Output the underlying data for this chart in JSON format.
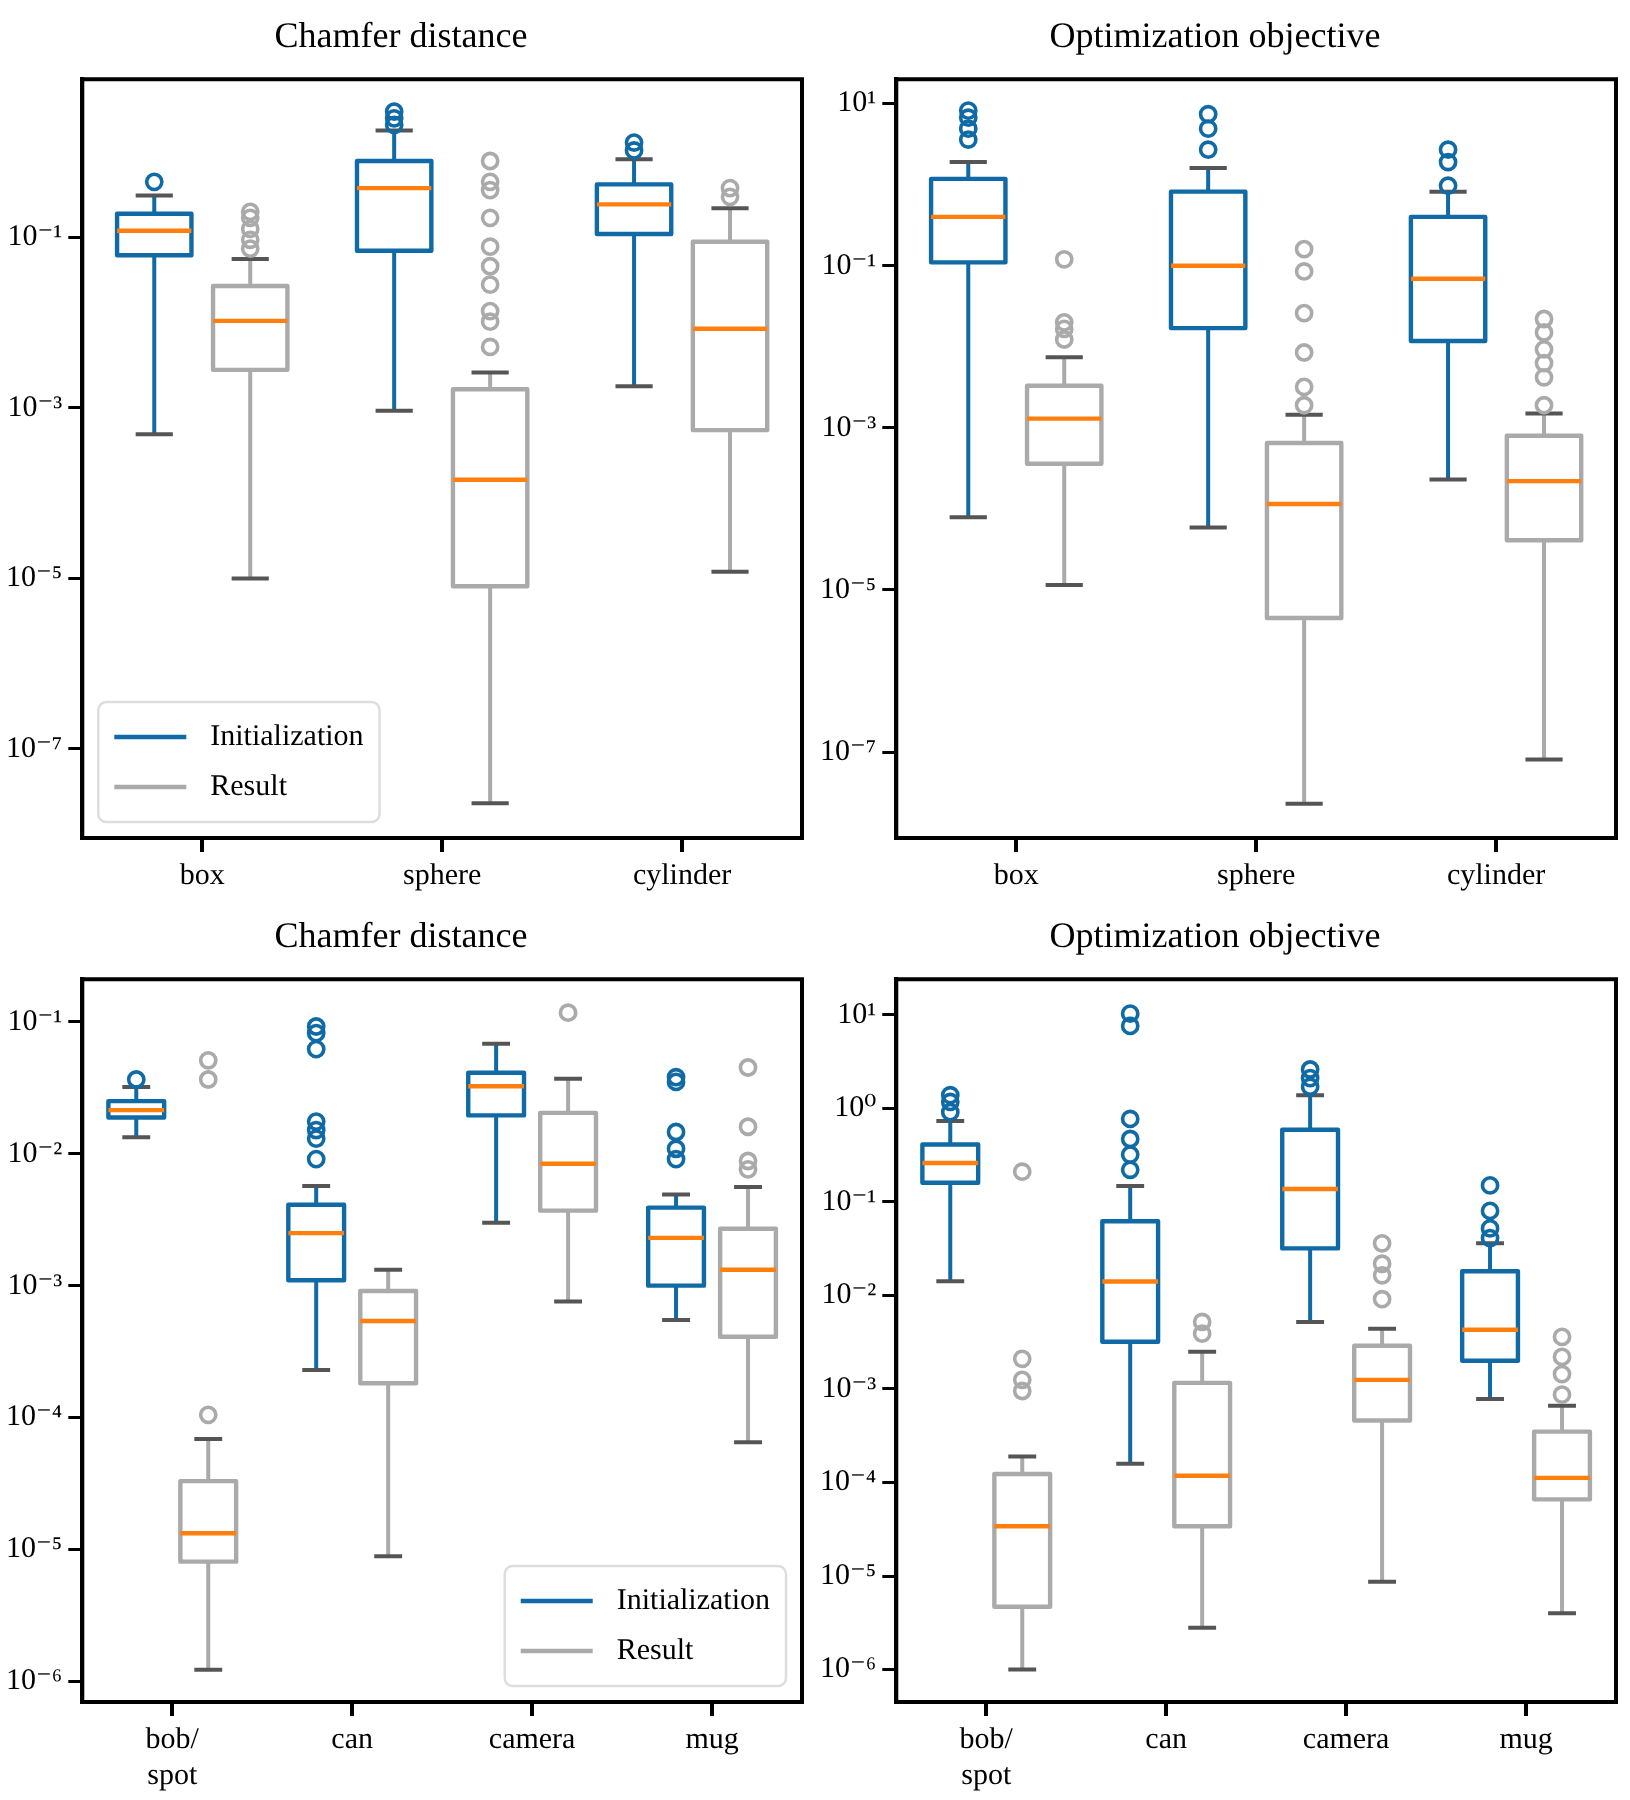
{
  "chart_data": [
    {
      "type": "box",
      "title": "Chamfer distance",
      "categories": [
        "box",
        "sphere",
        "cylinder"
      ],
      "log": true,
      "legend": "bottom left",
      "ylim": [
        9e-09,
        7.2
      ],
      "yticks": [
        {
          "value": 1e-07,
          "label": "10⁻⁷"
        },
        {
          "value": 1e-05,
          "label": "10⁻⁵"
        },
        {
          "value": 0.001,
          "label": "10⁻³"
        },
        {
          "value": 0.1,
          "label": "10⁻¹"
        }
      ],
      "series": [
        {
          "name": "Initialization",
          "color": "#0f6aa6",
          "boxes": [
            {
              "low": 0.00049,
              "q1": 0.062,
              "median": 0.12,
              "q3": 0.19,
              "high": 0.31,
              "outliers": [
                0.45
              ]
            },
            {
              "low": 0.00093,
              "q1": 0.07,
              "median": 0.38,
              "q3": 0.79,
              "high": 1.8,
              "outliers": [
                2.1,
                2.5,
                3.0
              ]
            },
            {
              "low": 0.0018,
              "q1": 0.11,
              "median": 0.245,
              "q3": 0.42,
              "high": 0.83,
              "outliers": [
                1.05,
                1.3
              ]
            }
          ]
        },
        {
          "name": "Result",
          "color": "#aaaaaa",
          "boxes": [
            {
              "low": 1e-05,
              "q1": 0.0028,
              "median": 0.0105,
              "q3": 0.027,
              "high": 0.056,
              "outliers": [
                0.074,
                0.094,
                0.126,
                0.17,
                0.2
              ]
            },
            {
              "low": 2.3e-08,
              "q1": 8.1e-06,
              "median": 0.000144,
              "q3": 0.00166,
              "high": 0.0026,
              "outliers": [
                0.0052,
                0.0103,
                0.0137,
                0.028,
                0.046,
                0.078,
                0.17,
                0.36,
                0.45,
                0.79
              ]
            },
            {
              "low": 1.2e-05,
              "q1": 0.00055,
              "median": 0.0085,
              "q3": 0.089,
              "high": 0.22,
              "outliers": [
                0.3,
                0.38
              ]
            }
          ]
        }
      ]
    },
    {
      "type": "box",
      "title": "Optimization objective",
      "categories": [
        "box",
        "sphere",
        "cylinder"
      ],
      "log": true,
      "ylim": [
        8.7e-09,
        20
      ],
      "yticks": [
        {
          "value": 1e-07,
          "label": "10⁻⁷"
        },
        {
          "value": 1e-05,
          "label": "10⁻⁵"
        },
        {
          "value": 0.001,
          "label": "10⁻³"
        },
        {
          "value": 0.1,
          "label": "10⁻¹"
        },
        {
          "value": 10,
          "label": "10¹"
        }
      ],
      "series": [
        {
          "color": "#0f6aa6",
          "boxes": [
            {
              "low": 7.9e-05,
              "q1": 0.11,
              "median": 0.4,
              "q3": 1.18,
              "high": 1.9,
              "outliers": [
                3.6,
                4.9,
                6.7,
                8.2
              ]
            },
            {
              "low": 5.9e-05,
              "q1": 0.017,
              "median": 0.1,
              "q3": 0.82,
              "high": 1.6,
              "outliers": [
                2.7,
                4.9,
                7.4
              ]
            },
            {
              "low": 0.00023,
              "q1": 0.0118,
              "median": 0.069,
              "q3": 0.4,
              "high": 0.82,
              "outliers": [
                0.97,
                1.9,
                2.7
              ]
            }
          ]
        },
        {
          "color": "#aaaaaa",
          "boxes": [
            {
              "low": 1.15e-05,
              "q1": 0.00036,
              "median": 0.0013,
              "q3": 0.0033,
              "high": 0.0074,
              "outliers": [
                0.0123,
                0.0166,
                0.02,
                0.12
              ]
            },
            {
              "low": 2.3e-08,
              "q1": 4.5e-06,
              "median": 0.000115,
              "q3": 0.00065,
              "high": 0.00145,
              "outliers": [
                0.0019,
                0.0032,
                0.0085,
                0.026,
                0.085,
                0.16
              ]
            },
            {
              "low": 8.1e-08,
              "q1": 4.1e-05,
              "median": 0.00022,
              "q3": 0.0008,
              "high": 0.0015,
              "outliers": [
                0.0019,
                0.0042,
                0.0063,
                0.0093,
                0.015,
                0.022
              ]
            }
          ]
        }
      ]
    },
    {
      "type": "box",
      "title": "Chamfer distance",
      "categories": [
        "bob/spot",
        "can",
        "camera",
        "mug"
      ],
      "log": true,
      "legend": "bottom right",
      "ylim": [
        7e-07,
        0.21
      ],
      "yticks": [
        {
          "value": 1e-06,
          "label": "10⁻⁶"
        },
        {
          "value": 1e-05,
          "label": "10⁻⁵"
        },
        {
          "value": 0.0001,
          "label": "10⁻⁴"
        },
        {
          "value": 0.001,
          "label": "10⁻³"
        },
        {
          "value": 0.01,
          "label": "10⁻²"
        },
        {
          "value": 0.1,
          "label": "10⁻¹"
        }
      ],
      "series": [
        {
          "name": "Initialization",
          "color": "#0f6aa6",
          "boxes": [
            {
              "low": 0.0133,
              "q1": 0.0188,
              "median": 0.0214,
              "q3": 0.025,
              "high": 0.032,
              "outliers": [
                0.0365
              ]
            },
            {
              "low": 0.00023,
              "q1": 0.0011,
              "median": 0.0025,
              "q3": 0.0041,
              "high": 0.0057,
              "outliers": [
                0.0091,
                0.013,
                0.0151,
                0.0175,
                0.062,
                0.082,
                0.092
              ]
            },
            {
              "low": 0.003,
              "q1": 0.0195,
              "median": 0.0324,
              "q3": 0.041,
              "high": 0.068
            },
            {
              "low": 0.00055,
              "q1": 0.001,
              "median": 0.0023,
              "q3": 0.0039,
              "high": 0.0049,
              "outliers": [
                0.0091,
                0.0109,
                0.0146,
                0.035,
                0.038
              ]
            }
          ]
        },
        {
          "name": "Result",
          "color": "#aaaaaa",
          "boxes": [
            {
              "low": 1.23e-06,
              "q1": 8.1e-06,
              "median": 1.33e-05,
              "q3": 3.3e-05,
              "high": 6.9e-05,
              "outliers": [
                0.000105,
                0.0365,
                0.051
              ]
            },
            {
              "low": 8.9e-06,
              "q1": 0.000182,
              "median": 0.00054,
              "q3": 0.00091,
              "high": 0.00132
            },
            {
              "low": 0.00076,
              "q1": 0.0037,
              "median": 0.0084,
              "q3": 0.0204,
              "high": 0.037,
              "outliers": [
                0.117
              ]
            },
            {
              "low": 6.5e-05,
              "q1": 0.00041,
              "median": 0.00132,
              "q3": 0.0027,
              "high": 0.0056,
              "outliers": [
                0.0076,
                0.0088,
                0.016,
                0.045
              ]
            }
          ]
        }
      ]
    },
    {
      "type": "box",
      "title": "Optimization objective",
      "categories": [
        "bob/spot",
        "can",
        "camera",
        "mug"
      ],
      "log": true,
      "ylim": [
        4.5e-07,
        24
      ],
      "yticks": [
        {
          "value": 1e-06,
          "label": "10⁻⁶"
        },
        {
          "value": 1e-05,
          "label": "10⁻⁵"
        },
        {
          "value": 0.0001,
          "label": "10⁻⁴"
        },
        {
          "value": 0.001,
          "label": "10⁻³"
        },
        {
          "value": 0.01,
          "label": "10⁻²"
        },
        {
          "value": 0.1,
          "label": "10⁻¹"
        },
        {
          "value": 1,
          "label": "10⁰"
        },
        {
          "value": 10,
          "label": "10¹"
        }
      ],
      "series": [
        {
          "color": "#0f6aa6",
          "boxes": [
            {
              "low": 0.0142,
              "q1": 0.16,
              "median": 0.26,
              "q3": 0.41,
              "high": 0.73,
              "outliers": [
                0.91,
                1.17,
                1.38
              ]
            },
            {
              "low": 0.000159,
              "q1": 0.0032,
              "median": 0.0141,
              "q3": 0.062,
              "high": 0.148,
              "outliers": [
                0.22,
                0.32,
                0.47,
                0.77,
                7.6,
                10.3
              ]
            },
            {
              "low": 0.0052,
              "q1": 0.0318,
              "median": 0.137,
              "q3": 0.59,
              "high": 1.38,
              "outliers": [
                1.7,
                2.1,
                2.6
              ]
            },
            {
              "low": 0.00078,
              "q1": 0.002,
              "median": 0.0043,
              "q3": 0.0181,
              "high": 0.036,
              "outliers": [
                0.041,
                0.052,
                0.08,
                0.15
              ]
            }
          ]
        },
        {
          "color": "#aaaaaa",
          "boxes": [
            {
              "low": 1e-06,
              "q1": 4.7e-06,
              "median": 3.4e-05,
              "q3": 0.000123,
              "high": 0.00019,
              "outliers": [
                0.00095,
                0.00125,
                0.0021,
                0.21
              ]
            },
            {
              "low": 2.8e-06,
              "q1": 3.4e-05,
              "median": 0.000118,
              "q3": 0.00116,
              "high": 0.0025,
              "outliers": [
                0.0039,
                0.0052
              ]
            },
            {
              "low": 8.7e-06,
              "q1": 0.00046,
              "median": 0.00125,
              "q3": 0.0029,
              "high": 0.0044,
              "outliers": [
                0.0091,
                0.0164,
                0.0218,
                0.036
              ]
            },
            {
              "low": 4e-06,
              "q1": 6.6e-05,
              "median": 0.000112,
              "q3": 0.00035,
              "high": 0.00066,
              "outliers": [
                0.00087,
                0.00144,
                0.0022,
                0.0036
              ]
            }
          ]
        }
      ]
    }
  ]
}
